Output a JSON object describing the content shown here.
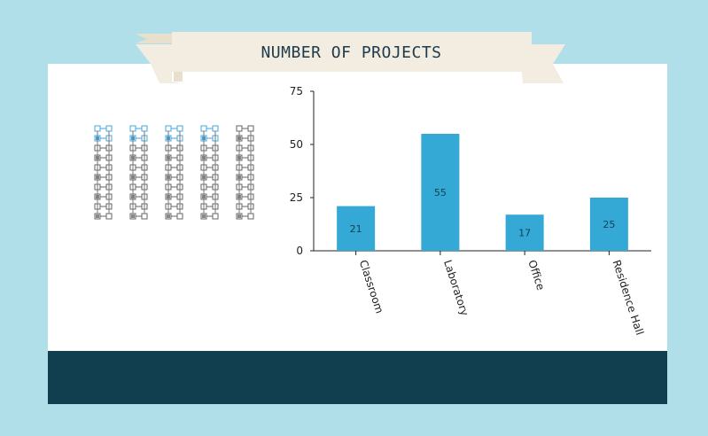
{
  "title": "NUMBER OF PROJECTS",
  "colors": {
    "background": "#b0dfea",
    "card": "#ffffff",
    "footer": "#123f50",
    "ribbon": "#f3ede1",
    "bar": "#35a9d6",
    "icon_highlight": "#4aa3d8"
  },
  "icons": {
    "name": "building-floorplan-icon",
    "count": 5,
    "highlighted_top": 4
  },
  "chart_data": {
    "type": "bar",
    "categories": [
      "Classroom",
      "Laboratory",
      "Office",
      "Residence Hall"
    ],
    "values": [
      21,
      55,
      17,
      25
    ],
    "data_labels": [
      "21",
      "55",
      "17",
      "25"
    ],
    "ylim": [
      0,
      75
    ],
    "yticks": [
      0,
      25,
      50,
      75
    ],
    "ytick_labels": [
      "0",
      "25",
      "50",
      "75"
    ],
    "grid": false,
    "xlabel": "",
    "ylabel": ""
  }
}
